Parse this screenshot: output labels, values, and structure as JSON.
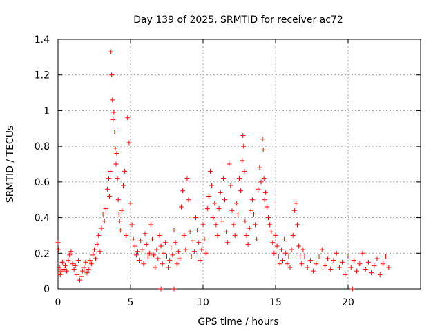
{
  "chart_data": {
    "type": "scatter",
    "title": "Day 139 of 2025, SRMTID for receiver ac72",
    "xlabel": "GPS time / hours",
    "ylabel": "SRMTID / TECUs",
    "xlim": [
      0,
      25
    ],
    "ylim": [
      0,
      1.4
    ],
    "xticks": [
      0,
      5,
      10,
      15,
      20
    ],
    "xtick_labels": [
      "0",
      "5",
      "10",
      "15",
      "20"
    ],
    "yticks": [
      0,
      0.2,
      0.4,
      0.6,
      0.8,
      1.0,
      1.2,
      1.4
    ],
    "ytick_labels": [
      "0",
      "0.2",
      "0.4",
      "0.6",
      "0.8",
      "1",
      "1.2",
      "1.4"
    ],
    "grid": true,
    "marker": "plus",
    "color": "#ff0000",
    "series": [
      {
        "name": "SRMTID",
        "x": [
          0.0,
          0.05,
          0.1,
          0.15,
          0.2,
          0.3,
          0.4,
          0.5,
          0.6,
          0.7,
          0.8,
          0.9,
          1.0,
          1.1,
          1.2,
          1.3,
          1.4,
          1.5,
          1.6,
          1.7,
          1.8,
          1.9,
          2.0,
          2.1,
          2.2,
          2.3,
          2.4,
          2.5,
          2.6,
          2.7,
          2.8,
          2.9,
          3.0,
          3.1,
          3.2,
          3.3,
          3.4,
          3.5,
          3.55,
          3.6,
          3.65,
          3.7,
          3.75,
          3.8,
          3.85,
          3.9,
          3.95,
          4.0,
          4.05,
          4.1,
          4.15,
          4.2,
          4.25,
          4.3,
          4.4,
          4.5,
          4.6,
          4.7,
          4.8,
          4.9,
          5.0,
          5.1,
          5.2,
          5.3,
          5.4,
          5.5,
          5.6,
          5.7,
          5.8,
          5.9,
          6.0,
          6.1,
          6.2,
          6.3,
          6.4,
          6.5,
          6.6,
          6.7,
          6.8,
          6.9,
          7.0,
          7.1,
          7.2,
          7.3,
          7.4,
          7.5,
          7.6,
          7.7,
          7.8,
          7.9,
          8.0,
          8.1,
          8.2,
          8.3,
          8.4,
          8.5,
          8.6,
          8.7,
          8.8,
          8.9,
          9.0,
          9.1,
          9.2,
          9.3,
          9.4,
          9.5,
          9.6,
          9.7,
          9.8,
          9.9,
          10.0,
          10.1,
          10.2,
          10.3,
          10.4,
          10.5,
          10.6,
          10.7,
          10.8,
          10.9,
          11.0,
          11.1,
          11.2,
          11.3,
          11.4,
          11.5,
          11.6,
          11.7,
          11.8,
          11.9,
          12.0,
          12.1,
          12.2,
          12.3,
          12.4,
          12.5,
          12.6,
          12.7,
          12.75,
          12.8,
          12.85,
          12.9,
          13.0,
          13.1,
          13.2,
          13.3,
          13.4,
          13.5,
          13.6,
          13.7,
          13.8,
          13.9,
          14.0,
          14.1,
          14.15,
          14.2,
          14.25,
          14.3,
          14.4,
          14.5,
          14.6,
          14.7,
          14.8,
          14.9,
          15.0,
          15.1,
          15.2,
          15.3,
          15.4,
          15.5,
          15.6,
          15.7,
          15.8,
          15.9,
          16.0,
          16.1,
          16.2,
          16.3,
          16.4,
          16.5,
          16.6,
          16.7,
          16.8,
          16.9,
          17.0,
          17.2,
          17.4,
          17.6,
          17.8,
          18.0,
          18.2,
          18.4,
          18.6,
          18.8,
          19.0,
          19.2,
          19.4,
          19.6,
          19.8,
          20.0,
          20.2,
          20.4,
          20.6,
          20.8,
          21.0,
          21.2,
          21.4,
          21.6,
          21.8,
          22.0,
          22.2,
          22.4,
          22.6,
          22.8,
          7.1,
          8.0,
          20.3
        ],
        "y": [
          0.26,
          0.22,
          0.12,
          0.08,
          0.1,
          0.15,
          0.11,
          0.13,
          0.1,
          0.16,
          0.19,
          0.21,
          0.14,
          0.11,
          0.13,
          0.08,
          0.16,
          0.05,
          0.07,
          0.1,
          0.12,
          0.15,
          0.09,
          0.11,
          0.16,
          0.14,
          0.19,
          0.22,
          0.17,
          0.25,
          0.3,
          0.21,
          0.34,
          0.42,
          0.38,
          0.45,
          0.56,
          0.62,
          0.52,
          0.66,
          1.33,
          1.2,
          1.06,
          0.95,
          0.99,
          0.88,
          0.79,
          0.7,
          0.76,
          0.62,
          0.5,
          0.42,
          0.38,
          0.33,
          0.44,
          0.58,
          0.66,
          0.3,
          0.96,
          0.82,
          0.48,
          0.36,
          0.28,
          0.24,
          0.19,
          0.21,
          0.16,
          0.27,
          0.22,
          0.14,
          0.31,
          0.25,
          0.18,
          0.2,
          0.36,
          0.28,
          0.19,
          0.12,
          0.22,
          0.17,
          0.3,
          0.24,
          0.14,
          0.2,
          0.26,
          0.18,
          0.12,
          0.16,
          0.23,
          0.19,
          0.33,
          0.26,
          0.14,
          0.21,
          0.17,
          0.46,
          0.55,
          0.3,
          0.22,
          0.62,
          0.5,
          0.32,
          0.18,
          0.27,
          0.21,
          0.4,
          0.33,
          0.26,
          0.16,
          0.22,
          0.36,
          0.28,
          0.2,
          0.45,
          0.52,
          0.66,
          0.58,
          0.4,
          0.48,
          0.36,
          0.3,
          0.45,
          0.54,
          0.38,
          0.62,
          0.5,
          0.32,
          0.26,
          0.7,
          0.58,
          0.44,
          0.36,
          0.3,
          0.48,
          0.42,
          0.62,
          0.55,
          0.72,
          0.86,
          0.8,
          0.66,
          0.38,
          0.3,
          0.25,
          0.34,
          0.44,
          0.5,
          0.42,
          0.36,
          0.28,
          0.56,
          0.68,
          0.6,
          0.84,
          0.78,
          0.62,
          0.5,
          0.54,
          0.46,
          0.4,
          0.36,
          0.32,
          0.26,
          0.2,
          0.3,
          0.24,
          0.18,
          0.14,
          0.22,
          0.16,
          0.28,
          0.2,
          0.14,
          0.18,
          0.12,
          0.22,
          0.3,
          0.44,
          0.48,
          0.36,
          0.24,
          0.18,
          0.14,
          0.22,
          0.18,
          0.12,
          0.16,
          0.1,
          0.14,
          0.18,
          0.22,
          0.13,
          0.17,
          0.11,
          0.16,
          0.2,
          0.12,
          0.15,
          0.08,
          0.18,
          0.12,
          0.16,
          0.1,
          0.14,
          0.2,
          0.11,
          0.15,
          0.09,
          0.13,
          0.17,
          0.08,
          0.14,
          0.18,
          0.12,
          0.0,
          0.0,
          0.0
        ]
      }
    ]
  }
}
